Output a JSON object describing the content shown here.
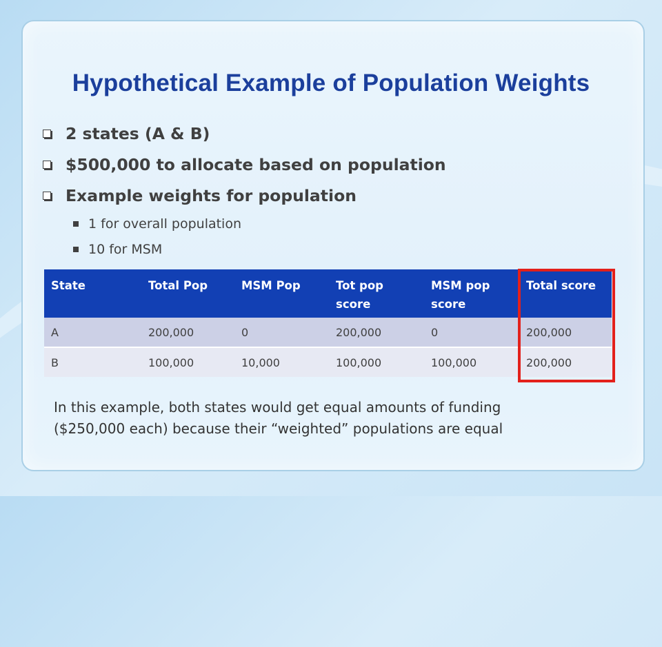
{
  "slide": {
    "title": "Hypothetical Example of Population Weights",
    "bullets": [
      "2 states (A & B)",
      "$500,000 to allocate based on population",
      "Example weights for population"
    ],
    "sub_bullets": [
      "1 for overall population",
      "10 for MSM"
    ],
    "table": {
      "headers": [
        "State",
        "Total Pop",
        "MSM Pop",
        "Tot pop score",
        "MSM pop score",
        "Total score"
      ],
      "rows": [
        [
          "A",
          "200,000",
          "0",
          "200,000",
          "0",
          "200,000"
        ],
        [
          "B",
          "100,000",
          "10,000",
          "100,000",
          "100,000",
          "200,000"
        ]
      ]
    },
    "note_line1": "In this example, both states would get equal amounts of funding",
    "note_line2": "($250,000 each) because their “weighted” populations are equal"
  },
  "colors": {
    "title": "#1b3f9c",
    "table_header_bg": "#1240b4",
    "row_a_bg": "#ccd0e6",
    "row_b_bg": "#e7e9f3",
    "highlight_border": "#e3201b"
  },
  "icons": {
    "bullet": "hollow-square-bullet-icon",
    "sub_bullet": "filled-square-bullet-icon"
  }
}
